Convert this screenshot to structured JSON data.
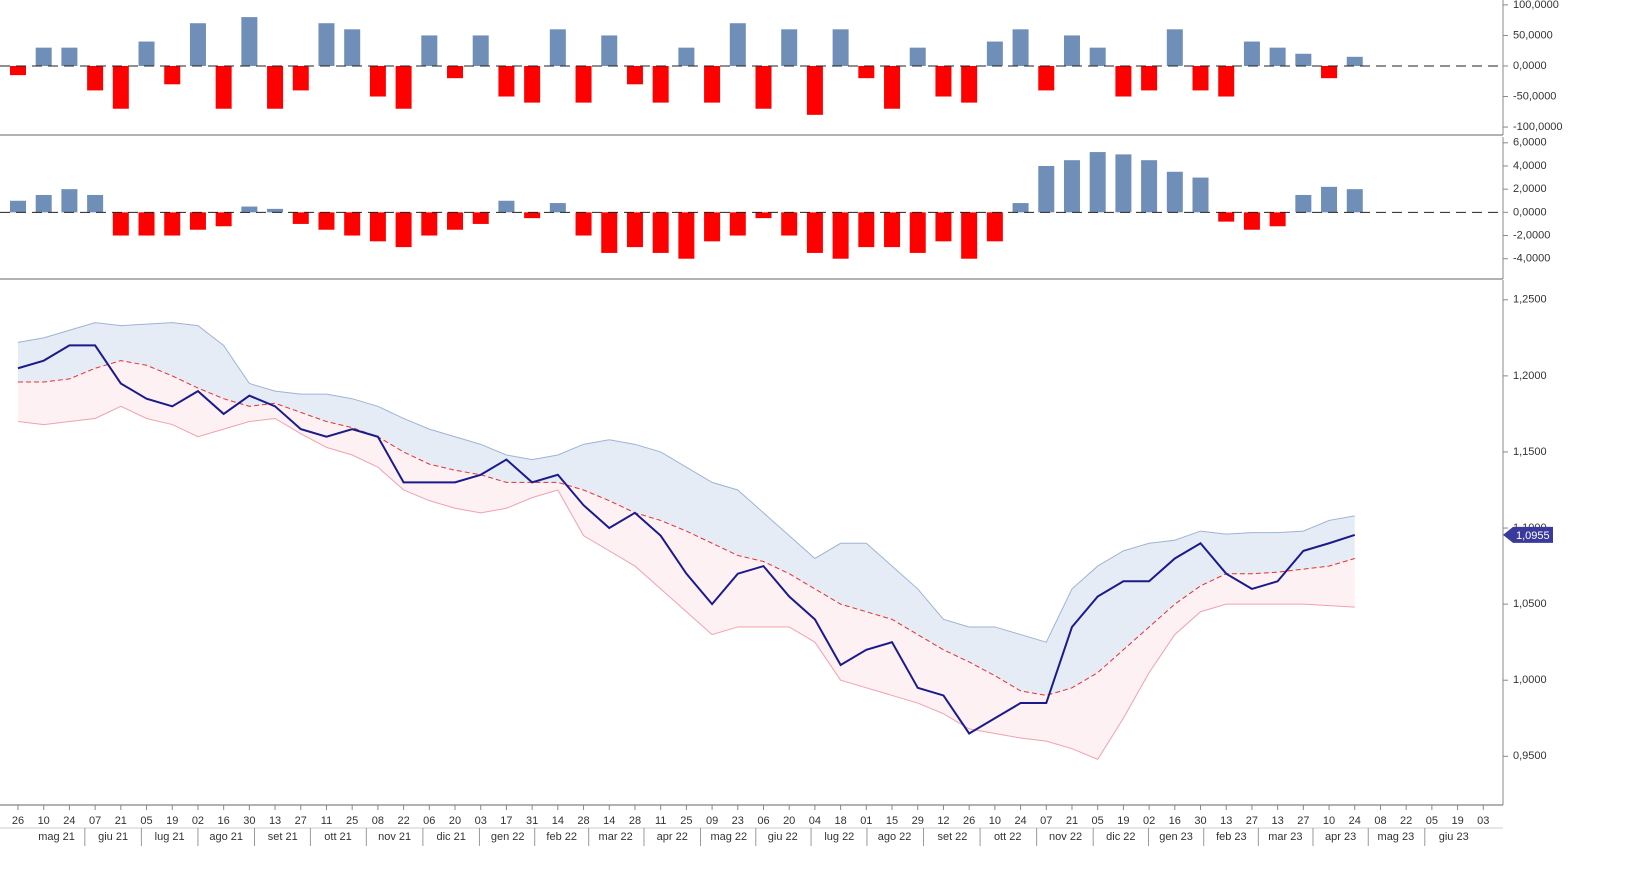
{
  "chart_data": [
    {
      "type": "bar",
      "color_up": "#6f8fb8",
      "color_down": "#ff0000",
      "xlim": [
        -1.4,
        115.3
      ],
      "x": [
        0,
        2,
        4,
        6,
        8,
        10,
        12,
        14,
        16,
        18,
        20,
        22,
        24,
        26,
        28,
        30,
        32,
        34,
        36,
        38,
        40,
        42,
        44,
        46,
        48,
        50,
        52,
        54,
        56,
        58,
        60,
        62,
        64,
        66,
        68,
        70,
        72,
        74,
        76,
        78,
        80,
        82,
        84,
        86,
        88,
        90,
        92,
        94,
        96,
        98,
        100,
        102,
        104
      ],
      "values": [
        -15,
        30,
        30,
        -40,
        -70,
        40,
        -30,
        70,
        -70,
        80,
        -70,
        -40,
        70,
        60,
        -50,
        -70,
        50,
        -20,
        50,
        -50,
        -60,
        60,
        -60,
        50,
        -30,
        -60,
        30,
        -60,
        70,
        -70,
        60,
        -80,
        60,
        -20,
        -70,
        30,
        -50,
        -60,
        40,
        60,
        -40,
        50,
        30,
        -50,
        -40,
        60,
        -40,
        -50,
        40,
        30,
        20,
        -20,
        15
      ],
      "ylim": [
        -113,
        108
      ],
      "yticks": [
        {
          "value": 100,
          "label": "100,0000"
        },
        {
          "value": 50,
          "label": "50,0000"
        },
        {
          "value": 0,
          "label": "0,0000"
        },
        {
          "value": -50,
          "label": "-50,0000"
        },
        {
          "value": -100,
          "label": "-100,0000"
        }
      ]
    },
    {
      "type": "bar",
      "color_up": "#6f8fb8",
      "color_down": "#ff0000",
      "xlim": [
        -1.4,
        115.3
      ],
      "x": [
        0,
        2,
        4,
        6,
        8,
        10,
        12,
        14,
        16,
        18,
        20,
        22,
        24,
        26,
        28,
        30,
        32,
        34,
        36,
        38,
        40,
        42,
        44,
        46,
        48,
        50,
        52,
        54,
        56,
        58,
        60,
        62,
        64,
        66,
        68,
        70,
        72,
        74,
        76,
        78,
        80,
        82,
        84,
        86,
        88,
        90,
        92,
        94,
        96,
        98,
        100,
        102,
        104
      ],
      "values": [
        1,
        1.5,
        2,
        1.5,
        -2,
        -2,
        -2,
        -1.5,
        -1.2,
        0.5,
        0.3,
        -1,
        -1.5,
        -2,
        -2.5,
        -3,
        -2,
        -1.5,
        -1,
        1,
        -0.5,
        0.8,
        -2,
        -3.5,
        -3,
        -3.5,
        -4,
        -2.5,
        -2,
        -0.5,
        -2,
        -3.5,
        -4,
        -3,
        -3,
        -3.5,
        -2.5,
        -4,
        -2.5,
        0.8,
        4,
        4.5,
        5.2,
        5,
        4.5,
        3.5,
        3,
        -0.8,
        -1.5,
        -1.2,
        1.5,
        2.2,
        2
      ],
      "ylim": [
        -5.75,
        6.5
      ],
      "yticks": [
        {
          "value": 6,
          "label": "6,0000"
        },
        {
          "value": 4,
          "label": "4,0000"
        },
        {
          "value": 2,
          "label": "2,0000"
        },
        {
          "value": 0,
          "label": "0,0000"
        },
        {
          "value": -2,
          "label": "-2,0000"
        },
        {
          "value": -4,
          "label": "-4,0000"
        }
      ]
    },
    {
      "type": "line",
      "xlim": [
        -1.4,
        115.3
      ],
      "x": [
        0,
        2,
        4,
        6,
        8,
        10,
        12,
        14,
        16,
        18,
        20,
        22,
        24,
        26,
        28,
        30,
        32,
        34,
        36,
        38,
        40,
        42,
        44,
        46,
        48,
        50,
        52,
        54,
        56,
        58,
        60,
        62,
        64,
        66,
        68,
        70,
        72,
        74,
        76,
        78,
        80,
        82,
        84,
        86,
        88,
        90,
        92,
        94,
        96,
        98,
        100,
        102,
        104
      ],
      "series": [
        {
          "color": "#1a1a8c",
          "values": [
            1.205,
            1.21,
            1.22,
            1.22,
            1.195,
            1.185,
            1.18,
            1.19,
            1.175,
            1.187,
            1.18,
            1.165,
            1.16,
            1.165,
            1.16,
            1.13,
            1.13,
            1.13,
            1.135,
            1.145,
            1.13,
            1.135,
            1.115,
            1.1,
            1.11,
            1.095,
            1.07,
            1.05,
            1.07,
            1.075,
            1.055,
            1.04,
            1.01,
            1.02,
            1.025,
            0.995,
            0.99,
            0.965,
            0.975,
            0.985,
            0.985,
            1.035,
            1.055,
            1.065,
            1.065,
            1.08,
            1.09,
            1.07,
            1.06,
            1.065,
            1.085,
            1.09,
            1.0955
          ]
        },
        {
          "color": "#9db4d6",
          "values": [
            1.222,
            1.225,
            1.23,
            1.235,
            1.233,
            1.234,
            1.235,
            1.233,
            1.22,
            1.195,
            1.19,
            1.188,
            1.188,
            1.185,
            1.18,
            1.172,
            1.165,
            1.16,
            1.155,
            1.148,
            1.145,
            1.148,
            1.155,
            1.158,
            1.155,
            1.15,
            1.14,
            1.13,
            1.125,
            1.11,
            1.095,
            1.08,
            1.09,
            1.09,
            1.075,
            1.06,
            1.04,
            1.035,
            1.035,
            1.03,
            1.025,
            1.06,
            1.075,
            1.085,
            1.09,
            1.092,
            1.098,
            1.096,
            1.097,
            1.097,
            1.098,
            1.105,
            1.108
          ]
        },
        {
          "color": "#e83030",
          "values": [
            1.196,
            1.196,
            1.198,
            1.205,
            1.21,
            1.207,
            1.2,
            1.192,
            1.185,
            1.18,
            1.182,
            1.176,
            1.17,
            1.166,
            1.16,
            1.15,
            1.142,
            1.138,
            1.135,
            1.13,
            1.13,
            1.13,
            1.125,
            1.118,
            1.11,
            1.105,
            1.098,
            1.09,
            1.082,
            1.078,
            1.07,
            1.06,
            1.05,
            1.045,
            1.04,
            1.03,
            1.02,
            1.012,
            1.003,
            0.993,
            0.99,
            0.995,
            1.005,
            1.02,
            1.035,
            1.05,
            1.062,
            1.07,
            1.07,
            1.071,
            1.073,
            1.075,
            1.08
          ]
        },
        {
          "color": "#f2a0b0",
          "values": [
            1.17,
            1.168,
            1.17,
            1.172,
            1.18,
            1.172,
            1.168,
            1.16,
            1.165,
            1.17,
            1.172,
            1.162,
            1.153,
            1.148,
            1.14,
            1.125,
            1.118,
            1.113,
            1.11,
            1.113,
            1.12,
            1.125,
            1.095,
            1.085,
            1.075,
            1.06,
            1.045,
            1.03,
            1.035,
            1.035,
            1.035,
            1.025,
            1.0,
            0.995,
            0.99,
            0.985,
            0.978,
            0.968,
            0.965,
            0.962,
            0.96,
            0.955,
            0.948,
            0.975,
            1.005,
            1.03,
            1.045,
            1.05,
            1.05,
            1.05,
            1.05,
            1.049,
            1.048
          ]
        }
      ],
      "last_label": "1,0955",
      "ylim": [
        0.918,
        1.263
      ],
      "yticks": [
        {
          "value": 1.25,
          "label": "1,2500"
        },
        {
          "value": 1.2,
          "label": "1,2000"
        },
        {
          "value": 1.15,
          "label": "1,1500"
        },
        {
          "value": 1.1,
          "label": "1,1000"
        },
        {
          "value": 1.05,
          "label": "1,0500"
        },
        {
          "value": 1.0,
          "label": "1,0000"
        },
        {
          "value": 0.95,
          "label": "0,9500"
        }
      ],
      "xticks": [
        {
          "value": 0,
          "label": "26"
        },
        {
          "value": 2,
          "label": "10"
        },
        {
          "value": 4,
          "label": "24"
        },
        {
          "value": 6,
          "label": "07"
        },
        {
          "value": 8,
          "label": "21"
        },
        {
          "value": 10,
          "label": "05"
        },
        {
          "value": 12,
          "label": "19"
        },
        {
          "value": 14,
          "label": "02"
        },
        {
          "value": 16,
          "label": "16"
        },
        {
          "value": 18,
          "label": "30"
        },
        {
          "value": 20,
          "label": "13"
        },
        {
          "value": 22,
          "label": "27"
        },
        {
          "value": 24,
          "label": "11"
        },
        {
          "value": 26,
          "label": "25"
        },
        {
          "value": 28,
          "label": "08"
        },
        {
          "value": 30,
          "label": "22"
        },
        {
          "value": 32,
          "label": "06"
        },
        {
          "value": 34,
          "label": "20"
        },
        {
          "value": 36,
          "label": "03"
        },
        {
          "value": 38,
          "label": "17"
        },
        {
          "value": 40,
          "label": "31"
        },
        {
          "value": 42,
          "label": "14"
        },
        {
          "value": 44,
          "label": "28"
        },
        {
          "value": 46,
          "label": "14"
        },
        {
          "value": 48,
          "label": "28"
        },
        {
          "value": 50,
          "label": "11"
        },
        {
          "value": 52,
          "label": "25"
        },
        {
          "value": 54,
          "label": "09"
        },
        {
          "value": 56,
          "label": "23"
        },
        {
          "value": 58,
          "label": "06"
        },
        {
          "value": 60,
          "label": "20"
        },
        {
          "value": 62,
          "label": "04"
        },
        {
          "value": 64,
          "label": "18"
        },
        {
          "value": 66,
          "label": "01"
        },
        {
          "value": 68,
          "label": "15"
        },
        {
          "value": 70,
          "label": "29"
        },
        {
          "value": 72,
          "label": "12"
        },
        {
          "value": 74,
          "label": "26"
        },
        {
          "value": 76,
          "label": "10"
        },
        {
          "value": 78,
          "label": "24"
        },
        {
          "value": 80,
          "label": "07"
        },
        {
          "value": 82,
          "label": "21"
        },
        {
          "value": 84,
          "label": "05"
        },
        {
          "value": 86,
          "label": "19"
        },
        {
          "value": 88,
          "label": "02"
        },
        {
          "value": 90,
          "label": "16"
        },
        {
          "value": 92,
          "label": "30"
        },
        {
          "value": 94,
          "label": "13"
        },
        {
          "value": 96,
          "label": "27"
        },
        {
          "value": 98,
          "label": "13"
        },
        {
          "value": 100,
          "label": "27"
        },
        {
          "value": 102,
          "label": "10"
        },
        {
          "value": 104,
          "label": "24"
        },
        {
          "value": 106,
          "label": "08"
        },
        {
          "value": 108,
          "label": "22"
        },
        {
          "value": 110,
          "label": "05"
        },
        {
          "value": 112,
          "label": "19"
        },
        {
          "value": 114,
          "label": "03"
        }
      ],
      "months": [
        {
          "value": 3.0,
          "label": "mag 21"
        },
        {
          "value": 7.4,
          "label": "giu 21"
        },
        {
          "value": 11.8,
          "label": "lug 21"
        },
        {
          "value": 16.2,
          "label": "ago 21"
        },
        {
          "value": 20.6,
          "label": "set 21"
        },
        {
          "value": 24.9,
          "label": "ott 21"
        },
        {
          "value": 29.3,
          "label": "nov 21"
        },
        {
          "value": 33.7,
          "label": "dic 21"
        },
        {
          "value": 38.1,
          "label": "gen 22"
        },
        {
          "value": 42.3,
          "label": "feb 22"
        },
        {
          "value": 46.5,
          "label": "mar 22"
        },
        {
          "value": 50.9,
          "label": "apr 22"
        },
        {
          "value": 55.3,
          "label": "mag 22"
        },
        {
          "value": 59.5,
          "label": "giu 22"
        },
        {
          "value": 63.9,
          "label": "lug 22"
        },
        {
          "value": 68.2,
          "label": "ago 22"
        },
        {
          "value": 72.7,
          "label": "set 22"
        },
        {
          "value": 77.0,
          "label": "ott 22"
        },
        {
          "value": 81.5,
          "label": "nov 22"
        },
        {
          "value": 85.8,
          "label": "dic 22"
        },
        {
          "value": 90.1,
          "label": "gen 23"
        },
        {
          "value": 94.4,
          "label": "feb 23"
        },
        {
          "value": 98.6,
          "label": "mar 23"
        },
        {
          "value": 102.9,
          "label": "apr 23"
        },
        {
          "value": 107.2,
          "label": "mag 23"
        },
        {
          "value": 111.7,
          "label": "giu 23"
        }
      ]
    }
  ]
}
